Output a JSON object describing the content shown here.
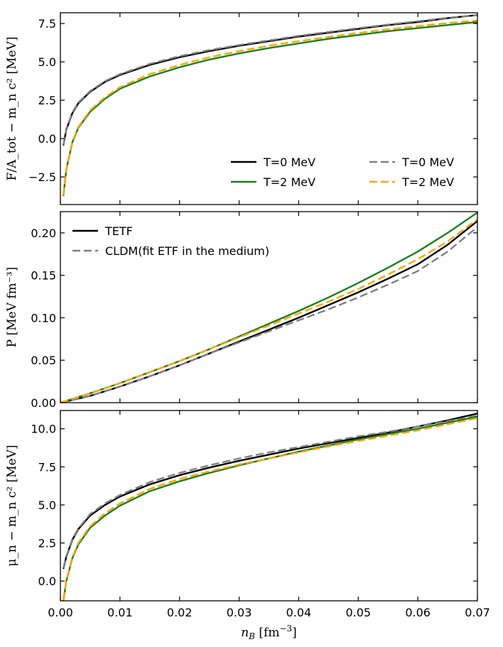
{
  "chart_data": {
    "type": "line",
    "x_label": "n_B [fm⁻³]",
    "x_label_parts": {
      "var": "n",
      "sub": "B",
      "unit": " [fm",
      "sup": "−3",
      "close": "]"
    },
    "xlim": [
      0.0,
      0.07
    ],
    "x_ticks": [
      "0.00",
      "0.01",
      "0.02",
      "0.03",
      "0.04",
      "0.05",
      "0.06",
      "0.07"
    ],
    "x_tick_values": [
      0.0,
      0.01,
      0.02,
      0.03,
      0.04,
      0.05,
      0.06,
      0.07
    ],
    "colors": {
      "black": "#000000",
      "green": "#1a7f1a",
      "gray": "#808080",
      "orange": "#ffa500"
    },
    "panels": [
      {
        "id": "free-energy",
        "ylabel": "F/A_tot − m_n c² [MeV]",
        "ylim": [
          -4.3,
          8.2
        ],
        "y_ticks": [
          "−2.5",
          "0.0",
          "2.5",
          "5.0",
          "7.5"
        ],
        "y_tick_values": [
          -2.5,
          0.0,
          2.5,
          5.0,
          7.5
        ],
        "legend": {
          "placement": "lower-right",
          "entries": [
            {
              "label": "T=0 MeV",
              "color": "black",
              "style": "solid"
            },
            {
              "label": "T=0 MeV",
              "color": "gray",
              "style": "dashed"
            },
            {
              "label": "T=2 MeV",
              "color": "green",
              "style": "solid"
            },
            {
              "label": "T=2 MeV",
              "color": "orange",
              "style": "dashed"
            }
          ]
        },
        "series": [
          {
            "name": "T=0 MeV TETF",
            "color": "black",
            "style": "solid",
            "x": [
              0.0005,
              0.001,
              0.002,
              0.003,
              0.005,
              0.0075,
              0.01,
              0.015,
              0.02,
              0.025,
              0.03,
              0.035,
              0.04,
              0.045,
              0.05,
              0.055,
              0.06,
              0.065,
              0.07
            ],
            "y": [
              -0.45,
              0.6,
              1.65,
              2.3,
              3.05,
              3.7,
              4.15,
              4.8,
              5.3,
              5.7,
              6.05,
              6.35,
              6.65,
              6.9,
              7.15,
              7.4,
              7.6,
              7.85,
              8.05
            ]
          },
          {
            "name": "T=0 MeV CLDM",
            "color": "gray",
            "style": "dashed",
            "x": [
              0.0005,
              0.001,
              0.002,
              0.003,
              0.005,
              0.0075,
              0.01,
              0.015,
              0.02,
              0.025,
              0.03,
              0.035,
              0.04,
              0.045,
              0.05,
              0.055,
              0.06,
              0.065,
              0.07
            ],
            "y": [
              -0.4,
              0.65,
              1.7,
              2.35,
              3.1,
              3.75,
              4.2,
              4.87,
              5.37,
              5.77,
              6.1,
              6.4,
              6.7,
              6.95,
              7.2,
              7.43,
              7.65,
              7.87,
              8.05
            ]
          },
          {
            "name": "T=2 MeV TETF",
            "color": "green",
            "style": "solid",
            "x": [
              0.0005,
              0.001,
              0.002,
              0.003,
              0.005,
              0.0075,
              0.01,
              0.015,
              0.02,
              0.025,
              0.03,
              0.035,
              0.04,
              0.045,
              0.05,
              0.055,
              0.06,
              0.065,
              0.07
            ],
            "y": [
              -3.75,
              -2.0,
              -0.25,
              0.7,
              1.75,
              2.6,
              3.25,
              4.05,
              4.65,
              5.15,
              5.55,
              5.9,
              6.2,
              6.5,
              6.75,
              7.0,
              7.2,
              7.4,
              7.6
            ]
          },
          {
            "name": "T=2 MeV CLDM",
            "color": "orange",
            "style": "dashed",
            "x": [
              0.0005,
              0.001,
              0.002,
              0.003,
              0.005,
              0.0075,
              0.01,
              0.015,
              0.02,
              0.025,
              0.03,
              0.035,
              0.04,
              0.045,
              0.05,
              0.055,
              0.06,
              0.065,
              0.07
            ],
            "y": [
              -3.7,
              -1.95,
              -0.2,
              0.75,
              1.85,
              2.7,
              3.35,
              4.2,
              4.8,
              5.3,
              5.7,
              6.05,
              6.35,
              6.62,
              6.88,
              7.12,
              7.33,
              7.53,
              7.7
            ]
          }
        ]
      },
      {
        "id": "pressure",
        "ylabel": "P [MeV fm⁻³]",
        "ylim": [
          0.0,
          0.225
        ],
        "y_ticks": [
          "0.00",
          "0.05",
          "0.10",
          "0.15",
          "0.20"
        ],
        "y_tick_values": [
          0.0,
          0.05,
          0.1,
          0.15,
          0.2
        ],
        "legend": {
          "placement": "upper-left",
          "entries": [
            {
              "label": "TETF",
              "color": "black",
              "style": "solid"
            },
            {
              "label": "CLDM(fit ETF in the medium)",
              "color": "gray",
              "style": "dashed"
            }
          ]
        },
        "series": [
          {
            "name": "T=0 MeV TETF",
            "color": "black",
            "style": "solid",
            "x": [
              0.0,
              0.005,
              0.01,
              0.015,
              0.02,
              0.025,
              0.03,
              0.035,
              0.04,
              0.045,
              0.05,
              0.055,
              0.06,
              0.065,
              0.07
            ],
            "y": [
              0.0,
              0.008,
              0.019,
              0.031,
              0.044,
              0.058,
              0.072,
              0.086,
              0.1,
              0.115,
              0.13,
              0.146,
              0.163,
              0.186,
              0.214
            ]
          },
          {
            "name": "T=0 MeV CLDM",
            "color": "gray",
            "style": "dashed",
            "x": [
              0.0,
              0.005,
              0.01,
              0.015,
              0.02,
              0.025,
              0.03,
              0.035,
              0.04,
              0.045,
              0.05,
              0.055,
              0.06,
              0.065,
              0.07
            ],
            "y": [
              0.0,
              0.008,
              0.019,
              0.031,
              0.044,
              0.058,
              0.071,
              0.084,
              0.097,
              0.11,
              0.124,
              0.139,
              0.155,
              0.178,
              0.207
            ]
          },
          {
            "name": "T=2 MeV TETF",
            "color": "green",
            "style": "solid",
            "x": [
              0.0,
              0.005,
              0.01,
              0.015,
              0.02,
              0.025,
              0.03,
              0.035,
              0.04,
              0.045,
              0.05,
              0.055,
              0.06,
              0.065,
              0.07
            ],
            "y": [
              0.0,
              0.011,
              0.023,
              0.036,
              0.049,
              0.063,
              0.078,
              0.093,
              0.108,
              0.124,
              0.141,
              0.159,
              0.178,
              0.2,
              0.224
            ]
          },
          {
            "name": "T=2 MeV CLDM",
            "color": "orange",
            "style": "dashed",
            "x": [
              0.0,
              0.005,
              0.01,
              0.015,
              0.02,
              0.025,
              0.03,
              0.035,
              0.04,
              0.045,
              0.05,
              0.055,
              0.06,
              0.065,
              0.07
            ],
            "y": [
              0.0,
              0.011,
              0.023,
              0.036,
              0.049,
              0.063,
              0.077,
              0.091,
              0.105,
              0.119,
              0.134,
              0.151,
              0.169,
              0.19,
              0.216
            ]
          }
        ]
      },
      {
        "id": "chemical-potential",
        "ylabel": "μ_n − m_n c² [MeV]",
        "ylim": [
          -1.3,
          11.2
        ],
        "y_ticks": [
          "0.0",
          "2.5",
          "5.0",
          "7.5",
          "10.0"
        ],
        "y_tick_values": [
          0.0,
          2.5,
          5.0,
          7.5,
          10.0
        ],
        "legend": null,
        "series": [
          {
            "name": "T=0 MeV TETF",
            "color": "black",
            "style": "solid",
            "x": [
              0.0005,
              0.001,
              0.002,
              0.003,
              0.005,
              0.0075,
              0.01,
              0.015,
              0.02,
              0.025,
              0.03,
              0.035,
              0.04,
              0.045,
              0.05,
              0.055,
              0.06,
              0.065,
              0.07
            ],
            "y": [
              0.8,
              1.6,
              2.7,
              3.4,
              4.3,
              5.0,
              5.55,
              6.35,
              6.95,
              7.45,
              7.9,
              8.3,
              8.7,
              9.05,
              9.4,
              9.75,
              10.15,
              10.55,
              11.0
            ]
          },
          {
            "name": "T=0 MeV CLDM",
            "color": "gray",
            "style": "dashed",
            "x": [
              0.0005,
              0.001,
              0.002,
              0.003,
              0.005,
              0.0075,
              0.01,
              0.015,
              0.02,
              0.025,
              0.03,
              0.035,
              0.04,
              0.045,
              0.05,
              0.055,
              0.06,
              0.065,
              0.07
            ],
            "y": [
              0.85,
              1.65,
              2.75,
              3.45,
              4.4,
              5.1,
              5.65,
              6.5,
              7.1,
              7.6,
              8.05,
              8.45,
              8.8,
              9.15,
              9.5,
              9.8,
              10.15,
              10.5,
              10.85
            ]
          },
          {
            "name": "T=2 MeV TETF",
            "color": "green",
            "style": "solid",
            "x": [
              0.0005,
              0.001,
              0.002,
              0.003,
              0.005,
              0.0075,
              0.01,
              0.015,
              0.02,
              0.025,
              0.03,
              0.035,
              0.04,
              0.045,
              0.05,
              0.055,
              0.06,
              0.065,
              0.07
            ],
            "y": [
              -1.3,
              0.0,
              1.5,
              2.4,
              3.5,
              4.3,
              4.95,
              5.9,
              6.55,
              7.1,
              7.6,
              8.05,
              8.5,
              8.9,
              9.3,
              9.65,
              10.0,
              10.4,
              10.8
            ]
          },
          {
            "name": "T=2 MeV CLDM",
            "color": "orange",
            "style": "dashed",
            "x": [
              0.0005,
              0.001,
              0.002,
              0.003,
              0.005,
              0.0075,
              0.01,
              0.015,
              0.02,
              0.025,
              0.03,
              0.035,
              0.04,
              0.045,
              0.05,
              0.055,
              0.06,
              0.065,
              0.07
            ],
            "y": [
              -1.25,
              0.05,
              1.55,
              2.5,
              3.6,
              4.45,
              5.1,
              6.05,
              6.7,
              7.2,
              7.65,
              8.05,
              8.45,
              8.85,
              9.2,
              9.55,
              9.9,
              10.3,
              10.7
            ]
          }
        ]
      }
    ]
  }
}
